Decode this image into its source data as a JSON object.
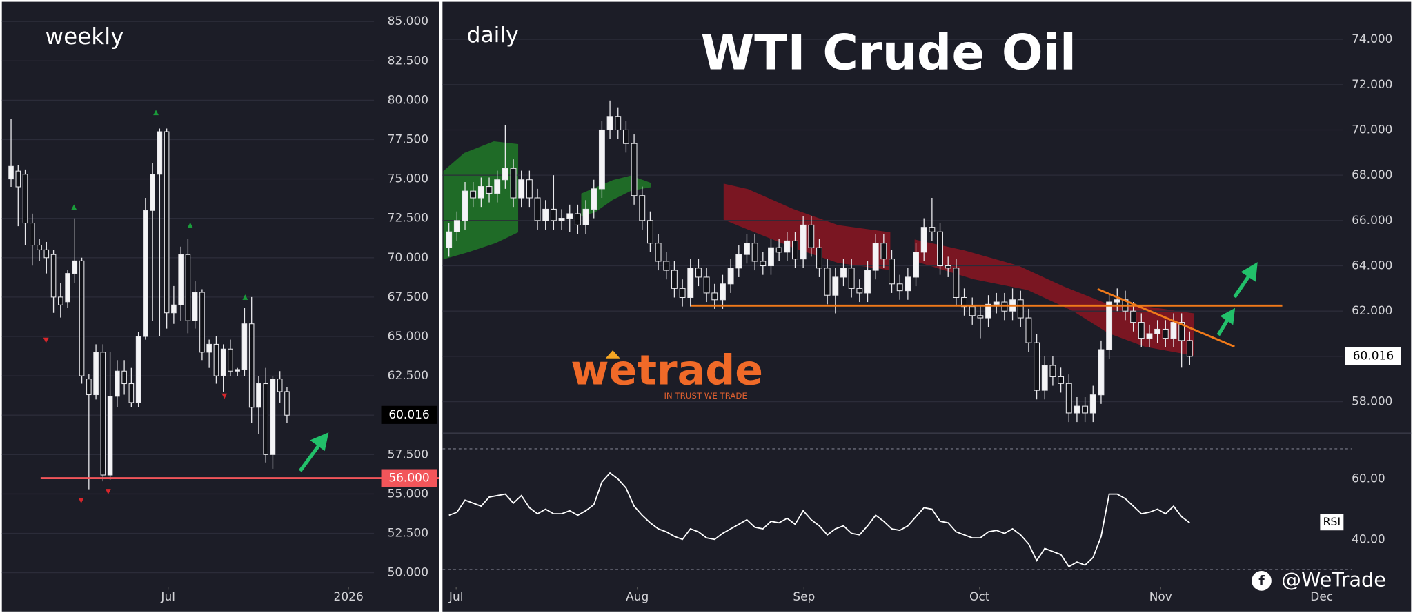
{
  "chart_data": [
    {
      "type": "candlestick",
      "label": "weekly",
      "x": [
        0,
        1,
        2,
        3,
        4,
        5,
        6,
        7,
        8,
        9,
        10,
        11,
        12,
        13,
        14,
        15,
        16,
        17,
        18,
        19,
        20,
        21,
        22,
        23,
        24,
        25,
        26,
        27,
        28,
        29,
        30,
        31,
        32,
        33,
        34,
        35,
        36,
        37,
        38,
        39
      ],
      "open": [
        75.0,
        75.5,
        75.3,
        72.2,
        70.8,
        70.5,
        70.2,
        67.5,
        67.2,
        69.0,
        69.8,
        62.3,
        61.3,
        64.0,
        56.2,
        61.2,
        62.8,
        62.0,
        60.8,
        65.0,
        73.0,
        75.3,
        78.0,
        66.5,
        67.0,
        70.2,
        66.0,
        67.8,
        64.0,
        64.5,
        62.5,
        64.2,
        62.8,
        62.9,
        65.8,
        60.5,
        62.0,
        57.5,
        62.3,
        61.5
      ],
      "high": [
        78.8,
        75.9,
        75.6,
        72.8,
        71.2,
        71.0,
        70.5,
        68.4,
        69.2,
        72.5,
        70.0,
        62.6,
        64.5,
        64.5,
        64.0,
        63.5,
        63.5,
        63.0,
        65.3,
        73.8,
        76.0,
        78.2,
        78.2,
        68.2,
        70.7,
        71.2,
        68.5,
        68.0,
        64.8,
        65.0,
        64.5,
        64.8,
        63.0,
        66.8,
        67.5,
        62.5,
        63.0,
        62.5,
        62.8,
        61.8
      ],
      "low": [
        74.5,
        72.0,
        70.8,
        69.5,
        69.8,
        69.0,
        66.5,
        66.2,
        66.8,
        68.4,
        62.0,
        55.3,
        61.0,
        55.8,
        55.9,
        60.5,
        61.3,
        60.5,
        60.5,
        64.8,
        66.0,
        65.0,
        65.5,
        65.8,
        66.0,
        65.2,
        65.5,
        63.5,
        63.0,
        62.0,
        61.5,
        62.5,
        62.5,
        62.5,
        59.5,
        58.8,
        57.0,
        56.6,
        60.8,
        59.5
      ],
      "close": [
        75.8,
        74.5,
        72.2,
        70.8,
        70.5,
        70.0,
        67.5,
        67.0,
        69.0,
        69.8,
        62.5,
        61.3,
        64.0,
        56.2,
        61.2,
        62.8,
        62.0,
        60.8,
        65.0,
        73.0,
        75.3,
        78.0,
        66.5,
        67.0,
        70.2,
        66.0,
        67.8,
        64.0,
        64.5,
        62.5,
        64.2,
        62.8,
        62.9,
        65.8,
        60.5,
        62.0,
        57.5,
        62.3,
        61.5,
        60.0
      ],
      "xlim": [
        -1.3,
        51.3
      ],
      "xticks": [
        {
          "value": 22.2,
          "label": "Jul"
        },
        {
          "value": 47.7,
          "label": "2026"
        }
      ],
      "ylim": [
        49.2,
        86.25
      ],
      "yticks": [
        {
          "value": 50,
          "label": "50.000"
        },
        {
          "value": 52.5,
          "label": "52.500"
        },
        {
          "value": 55,
          "label": "55.000"
        },
        {
          "value": 57.5,
          "label": "57.500"
        },
        {
          "value": 60,
          "label": "60.000"
        },
        {
          "value": 62.5,
          "label": "62.500"
        },
        {
          "value": 65,
          "label": "65.000"
        },
        {
          "value": 67.5,
          "label": "67.500"
        },
        {
          "value": 70,
          "label": "70.000"
        },
        {
          "value": 72.5,
          "label": "72.500"
        },
        {
          "value": 75,
          "label": "75.000"
        },
        {
          "value": 77.5,
          "label": "77.500"
        },
        {
          "value": 80,
          "label": "80.000"
        },
        {
          "value": 82.5,
          "label": "82.500"
        },
        {
          "value": 85,
          "label": "85.000"
        }
      ],
      "grid": true,
      "hline": {
        "value": 56,
        "label": "56.000",
        "color": "#f2555a"
      },
      "price_tag": {
        "value": 60.016,
        "label": "60.016"
      }
    },
    {
      "type": "candlestick",
      "title": "WTI Crude Oil",
      "label": "daily",
      "x": [
        0,
        1,
        2,
        3,
        4,
        5,
        6,
        7,
        8,
        9,
        10,
        11,
        12,
        13,
        14,
        15,
        16,
        17,
        18,
        19,
        20,
        21,
        22,
        23,
        24,
        25,
        26,
        27,
        28,
        29,
        30,
        31,
        32,
        33,
        34,
        35,
        36,
        37,
        38,
        39,
        40,
        41,
        42,
        43,
        44,
        45,
        46,
        47,
        48,
        49,
        50,
        51,
        52,
        53,
        54,
        55,
        56,
        57,
        58,
        59,
        60,
        61,
        62,
        63,
        64,
        65,
        66,
        67,
        68,
        69,
        70,
        71,
        72,
        73,
        74,
        75,
        76,
        77,
        78,
        79,
        80,
        81,
        82,
        83,
        84,
        85,
        86,
        87,
        88,
        89,
        90,
        91,
        92
      ],
      "open": [
        64.8,
        65.5,
        66.0,
        67.3,
        67.0,
        67.5,
        67.2,
        67.8,
        68.3,
        67.0,
        67.8,
        67.0,
        66.0,
        66.5,
        66.0,
        66.1,
        66.3,
        65.8,
        66.5,
        67.4,
        70.0,
        70.6,
        70.0,
        69.4,
        67.1,
        66.0,
        65.0,
        64.2,
        63.8,
        63.0,
        62.6,
        63.9,
        63.5,
        62.8,
        62.5,
        63.2,
        63.9,
        64.5,
        65.0,
        64.2,
        64.0,
        64.8,
        64.6,
        65.1,
        64.3,
        65.8,
        64.8,
        63.9,
        62.7,
        63.5,
        63.9,
        63.0,
        62.8,
        63.8,
        65.0,
        64.3,
        63.2,
        62.9,
        63.5,
        64.6,
        65.7,
        65.5,
        64.0,
        63.9,
        62.6,
        62.2,
        61.8,
        61.7,
        62.3,
        62.4,
        62.0,
        62.5,
        61.7,
        60.6,
        58.5,
        59.6,
        59.1,
        58.8,
        57.5,
        57.8,
        57.5,
        58.3,
        60.3,
        62.4,
        62.5,
        62.0,
        61.5,
        60.8,
        61.0,
        61.2,
        60.8,
        61.5,
        60.7
      ],
      "high": [
        65.9,
        66.4,
        67.7,
        67.7,
        67.9,
        67.9,
        68.2,
        70.2,
        68.7,
        68.2,
        68.2,
        67.4,
        66.9,
        68.0,
        66.5,
        66.7,
        66.7,
        66.9,
        67.8,
        70.4,
        71.3,
        71.0,
        70.4,
        69.8,
        67.5,
        66.4,
        65.4,
        64.6,
        64.2,
        63.4,
        64.3,
        64.3,
        63.9,
        63.2,
        63.6,
        64.3,
        64.9,
        65.4,
        65.4,
        64.6,
        65.2,
        65.2,
        65.5,
        65.5,
        66.2,
        66.2,
        65.2,
        64.3,
        63.9,
        64.3,
        64.3,
        63.4,
        64.2,
        65.4,
        65.4,
        64.7,
        63.6,
        63.9,
        65.0,
        66.1,
        67.0,
        65.9,
        64.4,
        64.3,
        63.0,
        62.6,
        62.2,
        62.7,
        62.8,
        62.8,
        63.0,
        62.9,
        62.1,
        61.0,
        60.0,
        60.0,
        59.5,
        59.2,
        58.2,
        58.2,
        58.7,
        60.7,
        62.8,
        63.0,
        62.9,
        62.4,
        61.9,
        61.4,
        61.6,
        61.6,
        61.9,
        61.9,
        61.1
      ],
      "low": [
        64.4,
        65.1,
        65.6,
        66.6,
        66.6,
        66.8,
        66.8,
        67.4,
        66.6,
        66.6,
        66.6,
        65.6,
        65.6,
        65.6,
        65.6,
        65.5,
        65.4,
        65.4,
        66.1,
        67.0,
        69.6,
        69.6,
        69.0,
        66.7,
        65.6,
        64.6,
        63.8,
        63.4,
        62.6,
        62.2,
        62.2,
        63.1,
        62.4,
        62.1,
        62.1,
        62.8,
        63.5,
        64.1,
        63.8,
        63.6,
        63.6,
        64.2,
        64.2,
        63.9,
        63.9,
        64.4,
        63.5,
        62.3,
        61.9,
        63.1,
        62.6,
        62.4,
        62.4,
        63.4,
        63.9,
        62.8,
        62.5,
        62.5,
        63.1,
        64.2,
        65.1,
        63.6,
        63.5,
        62.2,
        61.8,
        61.4,
        60.8,
        61.3,
        61.9,
        61.6,
        61.6,
        61.3,
        60.2,
        58.1,
        58.1,
        58.7,
        58.4,
        57.1,
        57.1,
        57.1,
        57.1,
        57.9,
        59.9,
        62.0,
        61.6,
        61.1,
        60.4,
        60.4,
        60.6,
        60.4,
        60.4,
        59.5,
        59.6
      ],
      "close": [
        65.5,
        66.0,
        67.3,
        67.0,
        67.5,
        67.2,
        67.8,
        68.3,
        67.0,
        67.8,
        67.0,
        66.0,
        66.5,
        66.0,
        66.1,
        66.3,
        65.8,
        66.5,
        67.4,
        70.0,
        70.6,
        70.0,
        69.4,
        67.1,
        66.0,
        65.0,
        64.2,
        63.8,
        63.0,
        62.6,
        63.9,
        63.5,
        62.8,
        62.5,
        63.2,
        63.9,
        64.5,
        65.0,
        64.2,
        64.0,
        64.8,
        64.6,
        65.1,
        64.3,
        65.8,
        64.8,
        63.9,
        62.7,
        63.5,
        63.9,
        63.0,
        62.8,
        63.8,
        65.0,
        64.3,
        63.2,
        62.9,
        63.5,
        64.6,
        65.7,
        65.5,
        64.0,
        63.9,
        62.6,
        62.2,
        61.8,
        61.7,
        62.3,
        62.4,
        62.0,
        62.5,
        61.7,
        60.6,
        58.5,
        59.6,
        59.1,
        58.8,
        57.5,
        57.8,
        57.5,
        58.3,
        60.3,
        62.4,
        62.5,
        62.0,
        61.5,
        60.8,
        61.0,
        61.2,
        60.8,
        61.5,
        60.7,
        60.0
      ],
      "xlim": [
        -0.8,
        111
      ],
      "xticks": [
        {
          "value": 0.9,
          "label": "Jul"
        },
        {
          "value": 23.4,
          "label": "Aug"
        },
        {
          "value": 44.1,
          "label": "Sep"
        },
        {
          "value": 65.9,
          "label": "Oct"
        },
        {
          "value": 88.4,
          "label": "Nov"
        },
        {
          "value": 108.4,
          "label": "Dec"
        }
      ],
      "ylim": [
        56.65,
        75.66
      ],
      "yticks": [
        {
          "value": 58,
          "label": "58.000"
        },
        {
          "value": 60,
          "label": "60.000"
        },
        {
          "value": 62,
          "label": "62.000"
        },
        {
          "value": 64,
          "label": "64.000"
        },
        {
          "value": 66,
          "label": "66.000"
        },
        {
          "value": 68,
          "label": "68.000"
        },
        {
          "value": 70,
          "label": "70.000"
        },
        {
          "value": 72,
          "label": "72.000"
        },
        {
          "value": 74,
          "label": "74.000"
        }
      ],
      "grid": true,
      "hline": {
        "value": 62.24,
        "color": "#f07a1a"
      },
      "price_tag": {
        "value": 60.016,
        "label": "60.016"
      }
    },
    {
      "type": "line",
      "label": "RSI",
      "x": [
        0,
        1,
        2,
        3,
        4,
        5,
        6,
        7,
        8,
        9,
        10,
        11,
        12,
        13,
        14,
        15,
        16,
        17,
        18,
        19,
        20,
        21,
        22,
        23,
        24,
        25,
        26,
        27,
        28,
        29,
        30,
        31,
        32,
        33,
        34,
        35,
        36,
        37,
        38,
        39,
        40,
        41,
        42,
        43,
        44,
        45,
        46,
        47,
        48,
        49,
        50,
        51,
        52,
        53,
        54,
        55,
        56,
        57,
        58,
        59,
        60,
        61,
        62,
        63,
        64,
        65,
        66,
        67,
        68,
        69,
        70,
        71,
        72,
        73,
        74,
        75,
        76,
        77,
        78,
        79,
        80,
        81,
        82,
        83,
        84,
        85,
        86,
        87,
        88,
        89,
        90,
        91,
        92
      ],
      "values": [
        48,
        49,
        53,
        52,
        51,
        54,
        54.5,
        55,
        52,
        54.5,
        50.5,
        48.5,
        50,
        48.5,
        48.5,
        49.5,
        48,
        49.5,
        51.5,
        59,
        62,
        60,
        57,
        51,
        48,
        45.5,
        43.5,
        42.5,
        41,
        40,
        43.5,
        42.5,
        40.5,
        40,
        42,
        43.5,
        45,
        46.5,
        44,
        43.5,
        46,
        45.5,
        47,
        45,
        49.5,
        46.5,
        44.5,
        41.5,
        43.5,
        44.5,
        42,
        41.5,
        44.5,
        48,
        46,
        43.5,
        43,
        44.5,
        47.5,
        50.5,
        50,
        46,
        45.5,
        42.5,
        41.5,
        40.5,
        40.5,
        42.5,
        43,
        42,
        43.5,
        41.5,
        38.5,
        33,
        37,
        36,
        35,
        31,
        32.5,
        31.5,
        34,
        41,
        55,
        55,
        53.5,
        51,
        48.5,
        49,
        50,
        48.5,
        51,
        47.5,
        45.5
      ],
      "color": "#ffffff",
      "xlim": [
        -0.8,
        111
      ],
      "ylim": [
        24.8,
        74.9
      ],
      "yticks": [
        {
          "value": 40,
          "label": "40.00"
        },
        {
          "value": 60,
          "label": "60.00"
        }
      ],
      "levels": [
        30,
        70
      ]
    }
  ],
  "branding": {
    "logo": "wetrade",
    "tagline": "IN TRUST WE TRADE",
    "handle": "@WeTrade"
  }
}
